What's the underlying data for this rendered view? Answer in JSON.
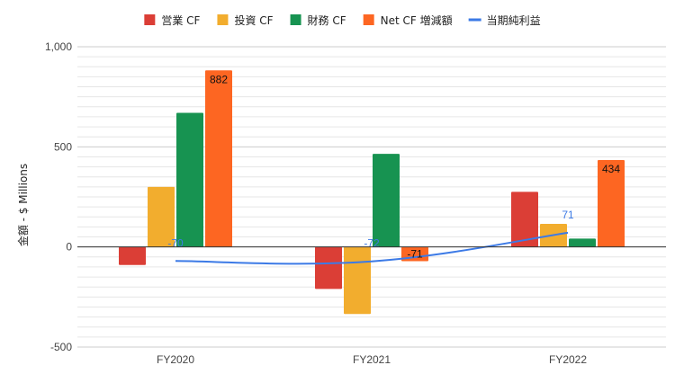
{
  "chart_data": {
    "type": "bar",
    "title": "",
    "xlabel": "",
    "ylabel": "金額 - $ Millions",
    "ylim": [
      -500,
      1000
    ],
    "yticks": [
      -500,
      0,
      500,
      1000
    ],
    "ytick_labels": [
      "-500",
      "0",
      "500",
      "1,000"
    ],
    "grid": true,
    "legend_position": "top",
    "categories": [
      "FY2020",
      "FY2021",
      "FY2022"
    ],
    "series": [
      {
        "name": "営業 CF",
        "type": "bar",
        "color": "#db3e36",
        "values": [
          -90,
          -210,
          275
        ]
      },
      {
        "name": "投資 CF",
        "type": "bar",
        "color": "#f2ad2e",
        "values": [
          300,
          -335,
          115
        ]
      },
      {
        "name": "財務 CF",
        "type": "bar",
        "color": "#179351",
        "values": [
          670,
          465,
          42
        ]
      },
      {
        "name": "Net CF 増減額",
        "type": "bar",
        "color": "#fd6622",
        "values": [
          882,
          -71,
          434
        ],
        "labels": [
          "882",
          "-71",
          "434"
        ]
      },
      {
        "name": "当期純利益",
        "type": "line",
        "color": "#3c7ae6",
        "values": [
          -70,
          -72,
          71
        ],
        "labels": [
          "-70",
          "-72",
          "71"
        ]
      }
    ]
  }
}
